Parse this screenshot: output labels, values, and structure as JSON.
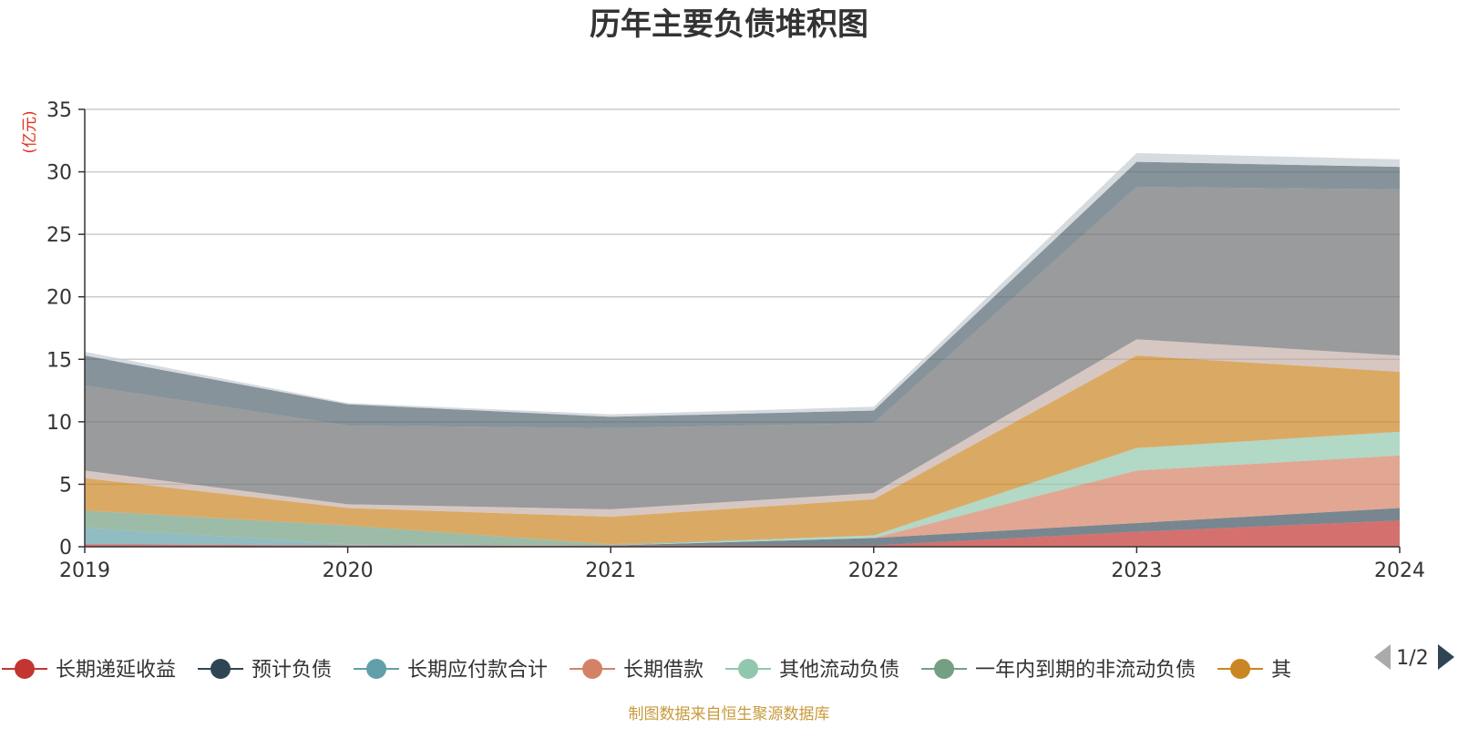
{
  "chart_data": {
    "type": "area",
    "stacked": true,
    "title": "历年主要负债堆积图",
    "unit_label": "(亿元)",
    "source_note": "制图数据来自恒生聚源数据库",
    "categories": [
      "2019",
      "2020",
      "2021",
      "2022",
      "2023",
      "2024"
    ],
    "ylim": [
      0,
      35
    ],
    "yticks": [
      0,
      5,
      10,
      15,
      20,
      25,
      30,
      35
    ],
    "grid": true,
    "legend_placement": "bottom",
    "legend_page": "1/2",
    "colors": {
      "title": "#333333",
      "unit": "#e0301e",
      "source": "#c89a3c",
      "grid": "#cccccc",
      "axis": "#333333"
    },
    "series": [
      {
        "name": "长期递延收益",
        "color": "#c23531",
        "opacity": 0.7,
        "in_legend": true,
        "values": [
          0.2,
          0.1,
          0.1,
          0.1,
          1.2,
          2.1
        ]
      },
      {
        "name": "预计负债",
        "color": "#2f4554",
        "opacity": 0.65,
        "in_legend": true,
        "values": [
          0.0,
          0.0,
          0.0,
          0.6,
          0.7,
          1.0
        ]
      },
      {
        "name": "长期应付款合计",
        "color": "#61a0a8",
        "opacity": 0.7,
        "in_legend": true,
        "values": [
          1.3,
          0.1,
          0.0,
          0.0,
          0.0,
          0.0
        ]
      },
      {
        "name": "长期借款",
        "color": "#d48265",
        "opacity": 0.7,
        "in_legend": true,
        "values": [
          0.0,
          0.0,
          0.0,
          0.0,
          4.2,
          4.2
        ]
      },
      {
        "name": "其他流动负债",
        "color": "#91c7ae",
        "opacity": 0.7,
        "in_legend": true,
        "values": [
          0.0,
          0.0,
          0.0,
          0.2,
          1.8,
          1.9
        ]
      },
      {
        "name": "一年内到期的非流动负债",
        "color": "#749f83",
        "opacity": 0.7,
        "in_legend": true,
        "values": [
          1.4,
          1.5,
          0.1,
          0.0,
          0.0,
          0.0
        ]
      },
      {
        "name": "其",
        "color": "#ca8622",
        "opacity": 0.7,
        "in_legend": true,
        "values": [
          2.6,
          1.4,
          2.2,
          2.9,
          7.4,
          4.8
        ]
      },
      {
        "name": "",
        "color": "#bda29a",
        "opacity": 0.6,
        "in_legend": false,
        "values": [
          0.6,
          0.3,
          0.6,
          0.5,
          1.3,
          1.3
        ]
      },
      {
        "name": "",
        "color": "#6e7074",
        "opacity": 0.7,
        "in_legend": false,
        "values": [
          6.8,
          6.3,
          6.5,
          5.6,
          12.2,
          13.3
        ]
      },
      {
        "name": "",
        "color": "#546570",
        "opacity": 0.7,
        "in_legend": false,
        "values": [
          2.4,
          1.7,
          0.9,
          1.0,
          2.0,
          1.8
        ]
      },
      {
        "name": "",
        "color": "#c4ccd3",
        "opacity": 0.7,
        "in_legend": false,
        "values": [
          0.3,
          0.1,
          0.2,
          0.3,
          0.7,
          0.6
        ]
      }
    ]
  }
}
